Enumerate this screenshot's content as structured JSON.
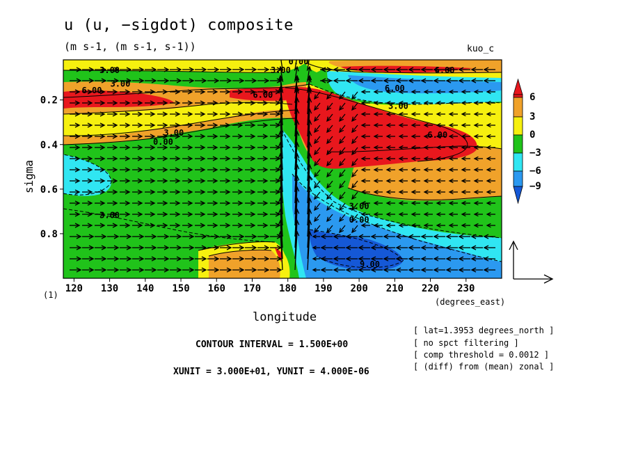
{
  "header": {
    "title": "u (u, −sigdot) composite",
    "units": "(m s-1, (m s-1, s-1))",
    "case": "kuo_c",
    "panel": "(1)"
  },
  "axes": {
    "xlabel": "longitude",
    "xunits": "(degrees_east)",
    "ylabel": "sigma"
  },
  "notes": [
    "[ lat=1.3953 degrees_north ]",
    "[ no spct filtering ]",
    "[ comp threshold = 0.0012 ]",
    "[ (diff) from (mean) zonal ]"
  ],
  "footer": {
    "contour_interval": "CONTOUR INTERVAL = 1.500E+00",
    "units_line": "XUNIT = 3.000E+01, YUNIT = 4.000E-06"
  },
  "colors": {
    "red": "#e8171d",
    "orange": "#f0a22a",
    "yellow": "#f6f00f",
    "green": "#20c31a",
    "cyan": "#30e6f2",
    "lightblue": "#2b99f0",
    "blue": "#1558d6"
  },
  "chart_data": {
    "type": "heatmap",
    "title": "u (u, −sigdot) composite",
    "xlabel": "longitude",
    "ylabel": "sigma",
    "xlim": [
      117,
      240
    ],
    "ylim": [
      1.0,
      0.02
    ],
    "x_ticks": [
      120,
      130,
      140,
      150,
      160,
      170,
      180,
      190,
      200,
      210,
      220,
      230
    ],
    "y_ticks": [
      0.2,
      0.4,
      0.6,
      0.8
    ],
    "colorbar": {
      "levels": [
        6,
        3,
        0,
        -3,
        -6,
        -9
      ],
      "labels": [
        "6",
        "3",
        "0",
        "−3",
        "−6",
        "−9"
      ]
    },
    "contour_labels": [
      {
        "text": "3.00",
        "x": 130,
        "sigma": 0.08
      },
      {
        "text": "3.00",
        "x": 178,
        "sigma": 0.08
      },
      {
        "text": "0.00",
        "x": 183,
        "sigma": 0.04
      },
      {
        "text": "6.00",
        "x": 125,
        "sigma": 0.17
      },
      {
        "text": "3.00",
        "x": 133,
        "sigma": 0.14
      },
      {
        "text": "6.00",
        "x": 173,
        "sigma": 0.19
      },
      {
        "text": "6.00",
        "x": 210,
        "sigma": 0.16
      },
      {
        "text": "6.00",
        "x": 224,
        "sigma": 0.08
      },
      {
        "text": "3.00",
        "x": 211,
        "sigma": 0.24
      },
      {
        "text": "3.00",
        "x": 148,
        "sigma": 0.36
      },
      {
        "text": "0.00",
        "x": 145,
        "sigma": 0.4
      },
      {
        "text": "6.00",
        "x": 222,
        "sigma": 0.37
      },
      {
        "text": "3.00",
        "x": 130,
        "sigma": 0.73
      },
      {
        "text": "3.00",
        "x": 200,
        "sigma": 0.69
      },
      {
        "text": "0.00",
        "x": 200,
        "sigma": 0.75
      },
      {
        "text": "9.00",
        "x": 203,
        "sigma": 0.95
      }
    ],
    "vector_reference": {
      "x_unit": 30.0,
      "y_unit": 4e-06
    }
  }
}
